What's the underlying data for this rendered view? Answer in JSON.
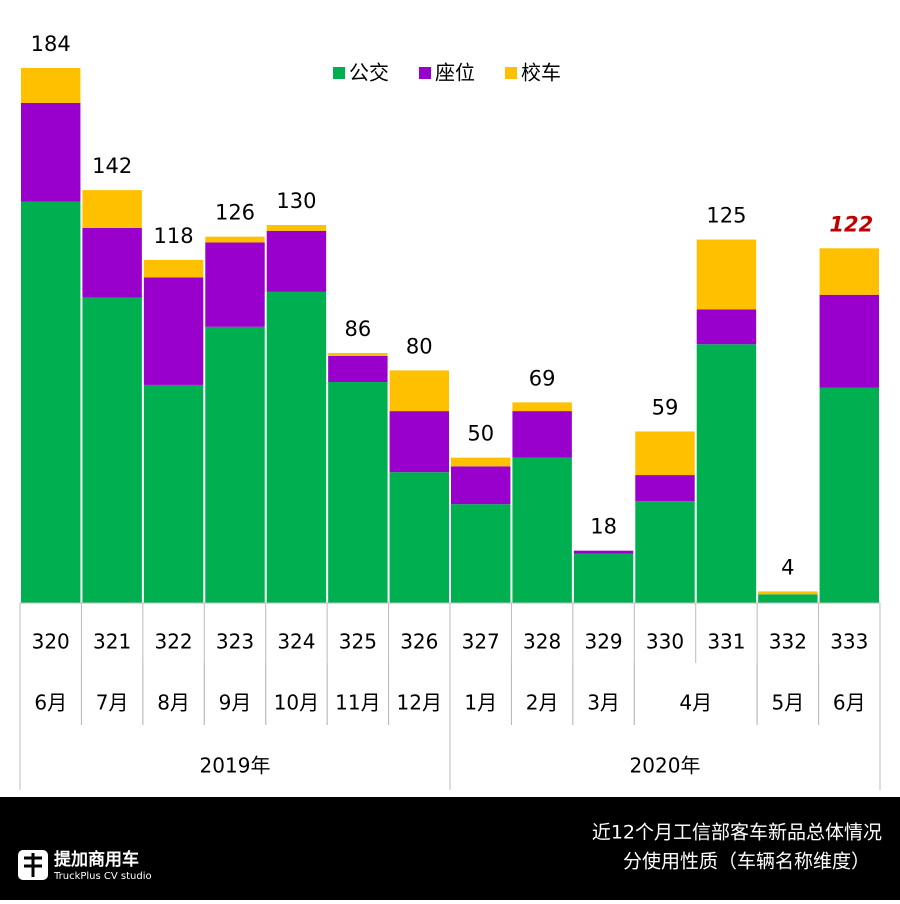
{
  "chart_data": {
    "type": "stacked-bar",
    "legend": "top",
    "categories": [
      "320",
      "321",
      "322",
      "323",
      "324",
      "325",
      "326",
      "327",
      "328",
      "329",
      "330",
      "331",
      "332",
      "333"
    ],
    "months": [
      "6月",
      "7月",
      "8月",
      "9月",
      "10月",
      "11月",
      "12月",
      "1月",
      "2月",
      "3月",
      "4月",
      null,
      "5月",
      "6月"
    ],
    "years": [
      "2019年",
      null,
      null,
      null,
      null,
      null,
      null,
      "2020年",
      null,
      null,
      null,
      null,
      null,
      null
    ],
    "series": [
      {
        "name": "公交",
        "color": "#00b050",
        "values": [
          138,
          105,
          75,
          95,
          107,
          76,
          45,
          34,
          50,
          17,
          35,
          89,
          3,
          74
        ]
      },
      {
        "name": "座位",
        "color": "#9900cc",
        "values": [
          34,
          24,
          37,
          29,
          21,
          9,
          21,
          13,
          16,
          1,
          9,
          12,
          0,
          32
        ]
      },
      {
        "name": "校车",
        "color": "#ffc000",
        "values": [
          12,
          13,
          6,
          2,
          2,
          1,
          14,
          3,
          3,
          0,
          15,
          24,
          1,
          16
        ]
      }
    ],
    "totals": [
      184,
      142,
      118,
      126,
      130,
      86,
      80,
      50,
      69,
      18,
      59,
      125,
      4,
      122
    ],
    "ylim": [
      0,
      184
    ]
  },
  "footer": {
    "brand": "提加商用车",
    "brand_sub": "TruckPlus CV studio",
    "caption_line1": "近12个月工信部客车新品总体情况",
    "caption_line2": "分使用性质（车辆名称维度）"
  }
}
